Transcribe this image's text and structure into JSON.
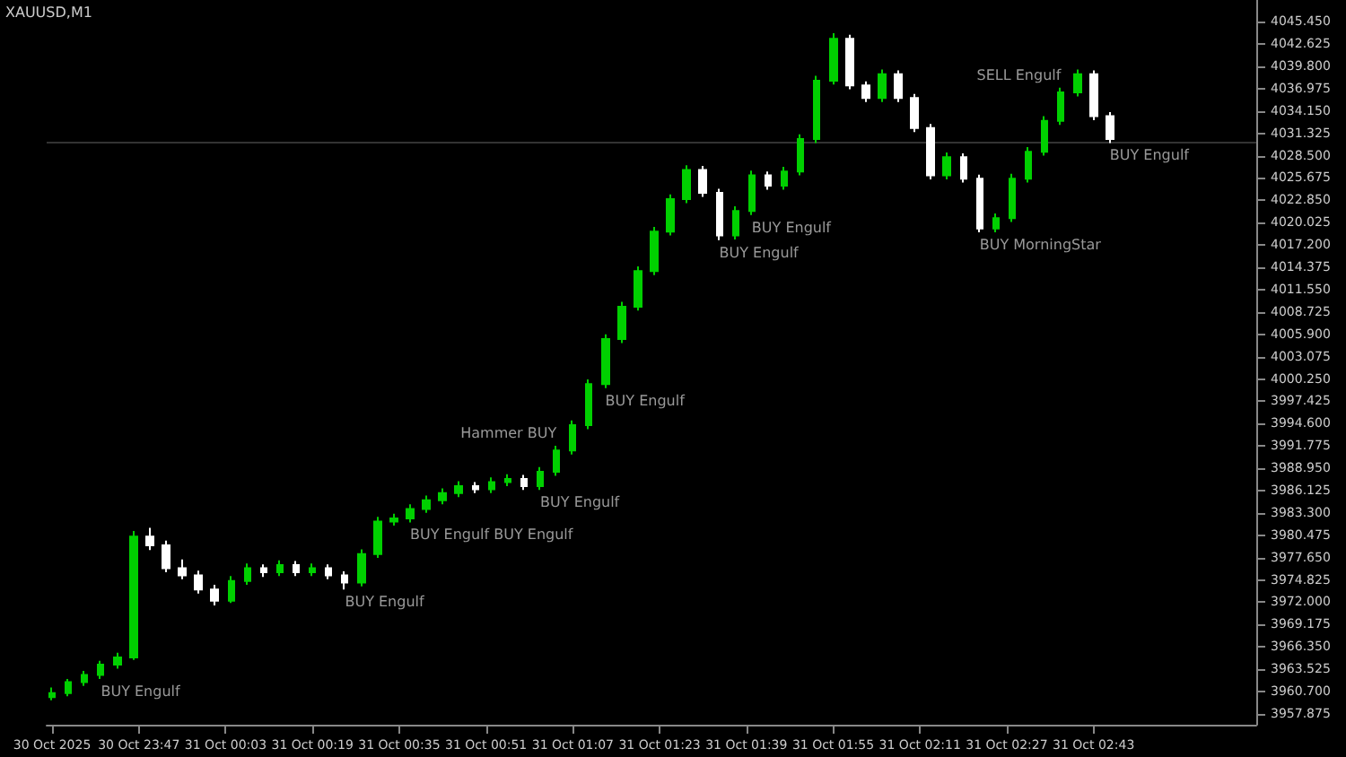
{
  "chart_data": {
    "type": "candlestick",
    "title": "XAUUSD,M1",
    "x": [
      "2025-10-30T23:31",
      "2025-10-30T23:34",
      "2025-10-30T23:37",
      "2025-10-30T23:40",
      "2025-10-30T23:43",
      "2025-10-30T23:46",
      "2025-10-30T23:49",
      "2025-10-30T23:52",
      "2025-10-30T23:55",
      "2025-10-30T23:58",
      "2025-10-31T00:01",
      "2025-10-31T00:04",
      "2025-10-31T00:07",
      "2025-10-31T00:10",
      "2025-10-31T00:13",
      "2025-10-31T00:16",
      "2025-10-31T00:19",
      "2025-10-31T00:22",
      "2025-10-31T00:25",
      "2025-10-31T00:28",
      "2025-10-31T00:31",
      "2025-10-31T00:34",
      "2025-10-31T00:37",
      "2025-10-31T00:40",
      "2025-10-31T00:43",
      "2025-10-31T00:46",
      "2025-10-31T00:49",
      "2025-10-31T00:52",
      "2025-10-31T00:55",
      "2025-10-31T00:58",
      "2025-10-31T01:01",
      "2025-10-31T01:04",
      "2025-10-31T01:07",
      "2025-10-31T01:10",
      "2025-10-31T01:13",
      "2025-10-31T01:16",
      "2025-10-31T01:19",
      "2025-10-31T01:22",
      "2025-10-31T01:25",
      "2025-10-31T01:28",
      "2025-10-31T01:31",
      "2025-10-31T01:34",
      "2025-10-31T01:37",
      "2025-10-31T01:40",
      "2025-10-31T01:43",
      "2025-10-31T01:46",
      "2025-10-31T01:49",
      "2025-10-31T01:52",
      "2025-10-31T01:55",
      "2025-10-31T01:58",
      "2025-10-31T02:01",
      "2025-10-31T02:04",
      "2025-10-31T02:07",
      "2025-10-31T02:10",
      "2025-10-31T02:13",
      "2025-10-31T02:16",
      "2025-10-31T02:19",
      "2025-10-31T02:22",
      "2025-10-31T02:25",
      "2025-10-31T02:28",
      "2025-10-31T02:31",
      "2025-10-31T02:34",
      "2025-10-31T02:37",
      "2025-10-31T02:40",
      "2025-10-31T02:43",
      "2025-10-31T02:46"
    ],
    "ohlc": [
      [
        3960.0,
        3961.2,
        3959.6,
        3960.5
      ],
      [
        3960.5,
        3962.3,
        3960.1,
        3961.9
      ],
      [
        3961.9,
        3963.3,
        3961.4,
        3962.8
      ],
      [
        3962.8,
        3964.6,
        3962.3,
        3964.1
      ],
      [
        3964.1,
        3965.6,
        3963.6,
        3965.0
      ],
      [
        3965.0,
        3981.0,
        3964.7,
        3980.3
      ],
      [
        3980.3,
        3981.4,
        3978.6,
        3979.2
      ],
      [
        3979.2,
        3979.8,
        3975.8,
        3976.3
      ],
      [
        3976.3,
        3977.4,
        3974.9,
        3975.4
      ],
      [
        3975.4,
        3976.0,
        3973.1,
        3973.6
      ],
      [
        3973.6,
        3974.2,
        3971.6,
        3972.2
      ],
      [
        3972.2,
        3975.3,
        3971.9,
        3974.7
      ],
      [
        3974.7,
        3976.9,
        3974.2,
        3976.3
      ],
      [
        3976.3,
        3976.8,
        3975.2,
        3975.8
      ],
      [
        3975.8,
        3977.3,
        3975.3,
        3976.7
      ],
      [
        3976.7,
        3977.2,
        3975.3,
        3975.8
      ],
      [
        3975.8,
        3976.9,
        3975.3,
        3976.3
      ],
      [
        3976.3,
        3976.8,
        3974.9,
        3975.4
      ],
      [
        3975.4,
        3975.9,
        3973.6,
        3974.5
      ],
      [
        3974.5,
        3978.7,
        3974.0,
        3978.1
      ],
      [
        3978.1,
        3982.8,
        3977.6,
        3982.2
      ],
      [
        3982.2,
        3983.2,
        3981.7,
        3982.6
      ],
      [
        3982.6,
        3984.4,
        3982.1,
        3983.8
      ],
      [
        3983.8,
        3985.5,
        3983.3,
        3984.9
      ],
      [
        3984.9,
        3986.4,
        3984.4,
        3985.8
      ],
      [
        3985.8,
        3987.3,
        3985.3,
        3986.7
      ],
      [
        3986.7,
        3987.2,
        3985.8,
        3986.3
      ],
      [
        3986.3,
        3987.8,
        3985.8,
        3987.2
      ],
      [
        3987.2,
        3988.2,
        3986.7,
        3987.6
      ],
      [
        3987.6,
        3988.1,
        3986.2,
        3986.7
      ],
      [
        3986.7,
        3989.1,
        3986.2,
        3988.5
      ],
      [
        3988.5,
        3991.8,
        3988.0,
        3991.2
      ],
      [
        3991.2,
        3995.0,
        3990.7,
        3994.4
      ],
      [
        3994.4,
        4000.2,
        3993.9,
        3999.6
      ],
      [
        3999.6,
        4005.9,
        3999.1,
        4005.3
      ],
      [
        4005.3,
        4010.0,
        4004.8,
        4009.4
      ],
      [
        4009.4,
        4014.5,
        4008.9,
        4013.9
      ],
      [
        4013.9,
        4019.5,
        4013.4,
        4018.9
      ],
      [
        4018.9,
        4023.6,
        4018.4,
        4023.0
      ],
      [
        4023.0,
        4027.3,
        4022.5,
        4026.7
      ],
      [
        4026.7,
        4027.2,
        4023.3,
        4023.8
      ],
      [
        4023.8,
        4024.3,
        4017.8,
        4018.4
      ],
      [
        4018.4,
        4022.1,
        4017.9,
        4021.5
      ],
      [
        4021.5,
        4026.6,
        4021.0,
        4026.0
      ],
      [
        4026.0,
        4026.5,
        4024.2,
        4024.7
      ],
      [
        4024.7,
        4027.1,
        4024.2,
        4026.5
      ],
      [
        4026.5,
        4031.2,
        4026.0,
        4030.6
      ],
      [
        4030.6,
        4038.6,
        4030.1,
        4038.0
      ],
      [
        4038.0,
        4044.0,
        4037.5,
        4043.3
      ],
      [
        4043.3,
        4043.8,
        4036.9,
        4037.4
      ],
      [
        4037.4,
        4037.9,
        4035.3,
        4035.8
      ],
      [
        4035.8,
        4039.4,
        4035.3,
        4038.8
      ],
      [
        4038.8,
        4039.3,
        4035.3,
        4035.8
      ],
      [
        4035.8,
        4036.3,
        4031.5,
        4032.0
      ],
      [
        4032.0,
        4032.5,
        4025.5,
        4026.0
      ],
      [
        4026.0,
        4028.9,
        4025.5,
        4028.3
      ],
      [
        4028.3,
        4028.8,
        4025.1,
        4025.6
      ],
      [
        4025.6,
        4026.1,
        4018.8,
        4019.3
      ],
      [
        4019.3,
        4021.2,
        4018.8,
        4020.6
      ],
      [
        4020.6,
        4026.2,
        4020.1,
        4025.6
      ],
      [
        4025.6,
        4029.6,
        4025.1,
        4029.0
      ],
      [
        4029.0,
        4033.5,
        4028.5,
        4032.9
      ],
      [
        4032.9,
        4037.1,
        4032.4,
        4036.5
      ],
      [
        4036.5,
        4039.4,
        4036.0,
        4038.8
      ],
      [
        4038.8,
        4039.3,
        4033.0,
        4033.5
      ],
      [
        4033.5,
        4034.0,
        4030.1,
        4030.6
      ]
    ],
    "colors": [
      "#00d000",
      "#00d000",
      "#00d000",
      "#00d000",
      "#00d000",
      "#00d000",
      "#ffffff",
      "#ffffff",
      "#ffffff",
      "#ffffff",
      "#ffffff",
      "#00d000",
      "#00d000",
      "#ffffff",
      "#00d000",
      "#ffffff",
      "#00d000",
      "#ffffff",
      "#ffffff",
      "#00d000",
      "#00d000",
      "#00d000",
      "#00d000",
      "#00d000",
      "#00d000",
      "#00d000",
      "#ffffff",
      "#00d000",
      "#00d000",
      "#ffffff",
      "#00d000",
      "#00d000",
      "#00d000",
      "#00d000",
      "#00d000",
      "#00d000",
      "#00d000",
      "#00d000",
      "#00d000",
      "#00d000",
      "#ffffff",
      "#ffffff",
      "#00d000",
      "#00d000",
      "#ffffff",
      "#00d000",
      "#00d000",
      "#00d000",
      "#00d000",
      "#ffffff",
      "#ffffff",
      "#00d000",
      "#ffffff",
      "#ffffff",
      "#ffffff",
      "#00d000",
      "#ffffff",
      "#ffffff",
      "#00d000",
      "#00d000",
      "#00d000",
      "#00d000",
      "#00d000",
      "#00d000",
      "#ffffff",
      "#ffffff"
    ],
    "xlim": [
      "2025-10-30T23:30",
      "2025-10-31T03:13"
    ],
    "xticks": [
      {
        "value": "2025-10-30T23:31",
        "label": "30 Oct 2025"
      },
      {
        "value": "2025-10-30T23:47",
        "label": "30 Oct 23:47"
      },
      {
        "value": "2025-10-31T00:03",
        "label": "31 Oct 00:03"
      },
      {
        "value": "2025-10-31T00:19",
        "label": "31 Oct 00:19"
      },
      {
        "value": "2025-10-31T00:35",
        "label": "31 Oct 00:35"
      },
      {
        "value": "2025-10-31T00:51",
        "label": "31 Oct 00:51"
      },
      {
        "value": "2025-10-31T01:07",
        "label": "31 Oct 01:07"
      },
      {
        "value": "2025-10-31T01:23",
        "label": "31 Oct 01:23"
      },
      {
        "value": "2025-10-31T01:39",
        "label": "31 Oct 01:39"
      },
      {
        "value": "2025-10-31T01:55",
        "label": "31 Oct 01:55"
      },
      {
        "value": "2025-10-31T02:11",
        "label": "31 Oct 02:11"
      },
      {
        "value": "2025-10-31T02:27",
        "label": "31 Oct 02:27"
      },
      {
        "value": "2025-10-31T02:43",
        "label": "31 Oct 02:43"
      }
    ],
    "ylim": [
      3956.5,
      4048.2
    ],
    "yticks": [
      {
        "value": 3957.875,
        "label": "3957.875"
      },
      {
        "value": 3960.7,
        "label": "3960.700"
      },
      {
        "value": 3963.525,
        "label": "3963.525"
      },
      {
        "value": 3966.35,
        "label": "3966.350"
      },
      {
        "value": 3969.175,
        "label": "3969.175"
      },
      {
        "value": 3972,
        "label": "3972.000"
      },
      {
        "value": 3974.825,
        "label": "3974.825"
      },
      {
        "value": 3977.65,
        "label": "3977.650"
      },
      {
        "value": 3980.475,
        "label": "3980.475"
      },
      {
        "value": 3983.3,
        "label": "3983.300"
      },
      {
        "value": 3986.125,
        "label": "3986.125"
      },
      {
        "value": 3988.95,
        "label": "3988.950"
      },
      {
        "value": 3991.775,
        "label": "3991.775"
      },
      {
        "value": 3994.6,
        "label": "3994.600"
      },
      {
        "value": 3997.425,
        "label": "3997.425"
      },
      {
        "value": 4000.25,
        "label": "4000.250"
      },
      {
        "value": 4003.075,
        "label": "4003.075"
      },
      {
        "value": 4005.9,
        "label": "4005.900"
      },
      {
        "value": 4008.725,
        "label": "4008.725"
      },
      {
        "value": 4011.55,
        "label": "4011.550"
      },
      {
        "value": 4014.375,
        "label": "4014.375"
      },
      {
        "value": 4017.2,
        "label": "4017.200"
      },
      {
        "value": 4020.025,
        "label": "4020.025"
      },
      {
        "value": 4022.85,
        "label": "4022.850"
      },
      {
        "value": 4025.675,
        "label": "4025.675"
      },
      {
        "value": 4028.5,
        "label": "4028.500"
      },
      {
        "value": 4031.325,
        "label": "4031.325"
      },
      {
        "value": 4034.15,
        "label": "4034.150"
      },
      {
        "value": 4036.975,
        "label": "4036.975"
      },
      {
        "value": 4039.8,
        "label": "4039.800"
      },
      {
        "value": 4042.625,
        "label": "4042.625"
      },
      {
        "value": 4045.45,
        "label": "4045.450"
      }
    ],
    "ref_lines": [
      {
        "axis": "y",
        "value": 4030.1,
        "color": "#333333"
      }
    ],
    "annotations": [
      {
        "text": "BUY Engulf",
        "x": "2025-10-30T23:40",
        "y": 3962.3
      },
      {
        "text": "BUY Engulf",
        "x": "2025-10-31T00:25",
        "y": 3973.6
      },
      {
        "text": "BUY Engulf BUY Engulf",
        "x": "2025-10-31T00:37",
        "y": 3982.1
      },
      {
        "text": "BUY Engulf",
        "x": "2025-10-31T01:01",
        "y": 3986.2
      },
      {
        "text": "Hammer BUY",
        "x": "2025-10-31T01:04",
        "y": 3991.8
      },
      {
        "text": "BUY Engulf",
        "x": "2025-10-31T01:13",
        "y": 3999.1
      },
      {
        "text": "BUY Engulf",
        "x": "2025-10-31T01:34",
        "y": 4017.8
      },
      {
        "text": "BUY Engulf",
        "x": "2025-10-31T01:40",
        "y": 4021.0
      },
      {
        "text": "BUY MorningStar",
        "x": "2025-10-31T02:22",
        "y": 4018.8
      },
      {
        "text": "SELL Engulf",
        "x": "2025-10-31T02:37",
        "y": 4037.1
      },
      {
        "text": "BUY Engulf",
        "x": "2025-10-31T02:46",
        "y": 4030.1
      }
    ]
  }
}
